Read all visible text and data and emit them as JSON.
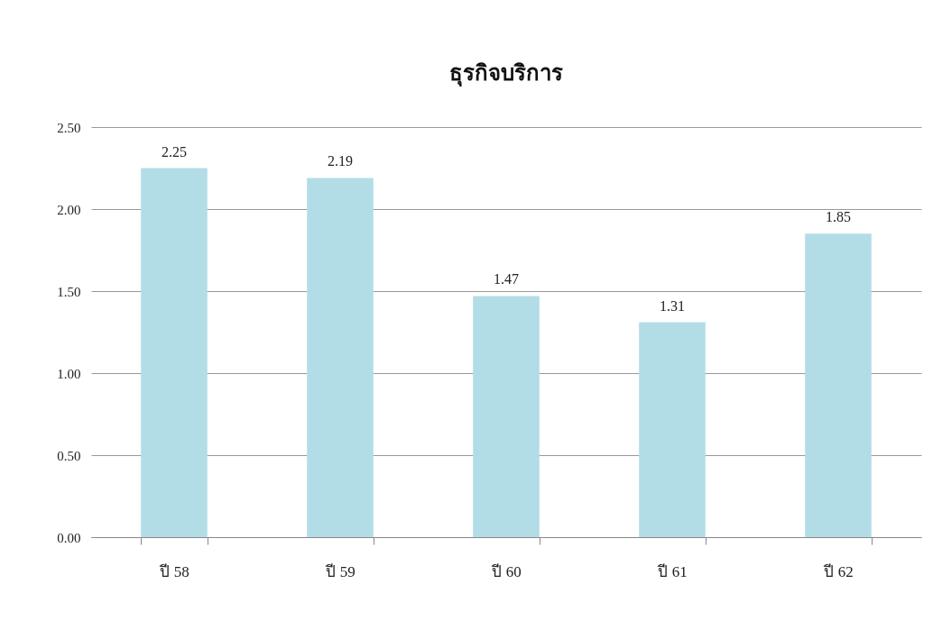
{
  "chart_data": {
    "type": "bar",
    "title": "ธุรกิจบริการ",
    "categories": [
      "ปี 58",
      "ปี 59",
      "ปี 60",
      "ปี 61",
      "ปี 62"
    ],
    "values": [
      2.25,
      2.19,
      1.47,
      1.31,
      1.85
    ],
    "color": "#b3dde6",
    "ylim": [
      0,
      2.5
    ],
    "yticks": [
      {
        "value": 0,
        "label": "0.00"
      },
      {
        "value": 0.5,
        "label": "0.50"
      },
      {
        "value": 1,
        "label": "1.00"
      },
      {
        "value": 1.5,
        "label": "1.50"
      },
      {
        "value": 2,
        "label": "2.00"
      },
      {
        "value": 2.5,
        "label": "2.50"
      }
    ],
    "grid": "y",
    "data_labels": true
  }
}
